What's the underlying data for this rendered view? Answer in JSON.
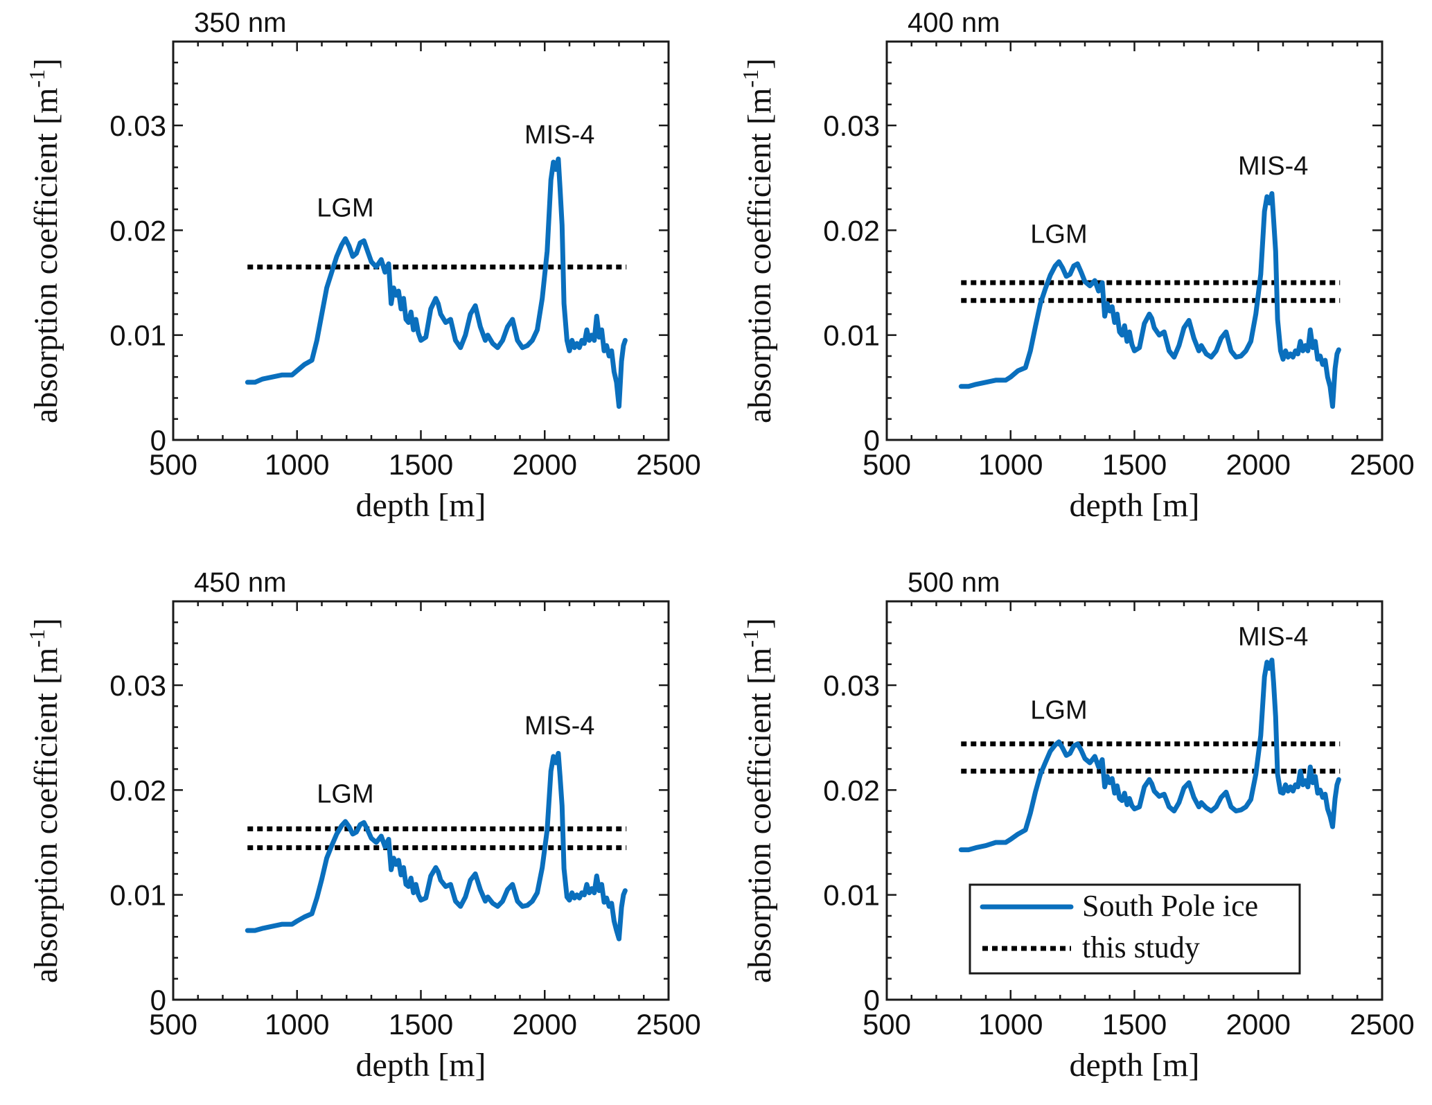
{
  "chart_data": [
    {
      "type": "line",
      "title": "350 nm",
      "xlabel": "depth [m]",
      "ylabel": "absorption coefficient [m",
      "ylabel_sup": "-1",
      "ylabel_close": "]",
      "xlim": [
        500,
        2500
      ],
      "ylim": [
        0,
        0.038
      ],
      "xticks": [
        "500",
        "1000",
        "1500",
        "2000",
        "2500"
      ],
      "xtick_values": [
        500,
        1000,
        1500,
        2000,
        2500
      ],
      "yticks": [
        "0",
        "0.01",
        "0.02",
        "0.03"
      ],
      "ytick_values": [
        0,
        0.01,
        0.02,
        0.03
      ],
      "series": [
        {
          "name": "South Pole ice",
          "x": [
            800,
            830,
            860,
            900,
            940,
            980,
            1000,
            1030,
            1060,
            1080,
            1100,
            1120,
            1140,
            1160,
            1180,
            1195,
            1210,
            1225,
            1240,
            1255,
            1270,
            1285,
            1300,
            1320,
            1340,
            1355,
            1370,
            1380,
            1390,
            1400,
            1410,
            1420,
            1430,
            1440,
            1450,
            1460,
            1470,
            1480,
            1490,
            1500,
            1520,
            1540,
            1560,
            1570,
            1580,
            1600,
            1620,
            1640,
            1660,
            1680,
            1700,
            1720,
            1740,
            1760,
            1770,
            1790,
            1810,
            1830,
            1850,
            1870,
            1880,
            1890,
            1910,
            1930,
            1950,
            1970,
            1990,
            2010,
            2025,
            2035,
            2045,
            2055,
            2062,
            2070,
            2078,
            2090,
            2100,
            2110,
            2120,
            2130,
            2140,
            2150,
            2160,
            2170,
            2180,
            2190,
            2200,
            2210,
            2220,
            2230,
            2240,
            2250,
            2260,
            2270,
            2280,
            2290,
            2300,
            2310,
            2318,
            2325
          ],
          "y": [
            0.0055,
            0.0055,
            0.0058,
            0.006,
            0.0062,
            0.0062,
            0.0066,
            0.0072,
            0.0076,
            0.0095,
            0.012,
            0.0145,
            0.016,
            0.0175,
            0.0186,
            0.0192,
            0.0185,
            0.0175,
            0.0178,
            0.0188,
            0.019,
            0.018,
            0.017,
            0.0165,
            0.0172,
            0.016,
            0.0168,
            0.013,
            0.0145,
            0.0138,
            0.0142,
            0.0125,
            0.0135,
            0.0115,
            0.0112,
            0.0122,
            0.0105,
            0.0115,
            0.0102,
            0.0095,
            0.0098,
            0.0125,
            0.0135,
            0.013,
            0.012,
            0.0112,
            0.0115,
            0.0095,
            0.0088,
            0.01,
            0.012,
            0.0128,
            0.0108,
            0.0095,
            0.01,
            0.0092,
            0.0088,
            0.0095,
            0.0108,
            0.0115,
            0.0105,
            0.0095,
            0.0088,
            0.009,
            0.0095,
            0.0105,
            0.0135,
            0.018,
            0.0248,
            0.0265,
            0.0258,
            0.0268,
            0.024,
            0.0205,
            0.013,
            0.0095,
            0.0085,
            0.0095,
            0.0088,
            0.0092,
            0.0088,
            0.0095,
            0.0092,
            0.0105,
            0.0095,
            0.01,
            0.0095,
            0.0118,
            0.0098,
            0.0105,
            0.0085,
            0.009,
            0.008,
            0.0085,
            0.0065,
            0.0055,
            0.0032,
            0.0075,
            0.009,
            0.0095
          ]
        }
      ],
      "reference_levels": [
        0.0165
      ],
      "annotations": [
        {
          "text": "LGM",
          "x": 1195,
          "y": 0.0213
        },
        {
          "text": "MIS-4",
          "x": 2060,
          "y": 0.0283
        }
      ]
    },
    {
      "type": "line",
      "title": "400 nm",
      "xlabel": "depth [m]",
      "ylabel": "absorption coefficient [m",
      "ylabel_sup": "-1",
      "ylabel_close": "]",
      "xlim": [
        500,
        2500
      ],
      "ylim": [
        0,
        0.038
      ],
      "xticks": [
        "500",
        "1000",
        "1500",
        "2000",
        "2500"
      ],
      "xtick_values": [
        500,
        1000,
        1500,
        2000,
        2500
      ],
      "yticks": [
        "0",
        "0.01",
        "0.02",
        "0.03"
      ],
      "ytick_values": [
        0,
        0.01,
        0.02,
        0.03
      ],
      "series": [
        {
          "name": "South Pole ice",
          "x": [
            800,
            830,
            860,
            900,
            940,
            980,
            1000,
            1030,
            1060,
            1080,
            1100,
            1120,
            1140,
            1160,
            1180,
            1195,
            1210,
            1225,
            1240,
            1255,
            1270,
            1285,
            1300,
            1320,
            1340,
            1355,
            1370,
            1380,
            1390,
            1400,
            1410,
            1420,
            1430,
            1440,
            1450,
            1460,
            1470,
            1480,
            1490,
            1500,
            1520,
            1540,
            1560,
            1570,
            1580,
            1600,
            1620,
            1640,
            1660,
            1680,
            1700,
            1720,
            1740,
            1760,
            1770,
            1790,
            1810,
            1830,
            1850,
            1870,
            1880,
            1890,
            1910,
            1930,
            1950,
            1970,
            1990,
            2010,
            2025,
            2035,
            2045,
            2055,
            2062,
            2070,
            2078,
            2090,
            2100,
            2110,
            2120,
            2130,
            2140,
            2150,
            2160,
            2170,
            2180,
            2190,
            2200,
            2210,
            2220,
            2230,
            2240,
            2250,
            2260,
            2270,
            2280,
            2290,
            2300,
            2310,
            2318,
            2325
          ],
          "y": [
            0.0051,
            0.0051,
            0.0053,
            0.0055,
            0.0057,
            0.0057,
            0.006,
            0.0066,
            0.0069,
            0.0085,
            0.0108,
            0.013,
            0.0144,
            0.0157,
            0.0166,
            0.017,
            0.0164,
            0.0156,
            0.0158,
            0.0166,
            0.0168,
            0.016,
            0.0151,
            0.0147,
            0.0152,
            0.0142,
            0.015,
            0.0118,
            0.013,
            0.0123,
            0.0127,
            0.0112,
            0.012,
            0.0103,
            0.01,
            0.0109,
            0.0094,
            0.0103,
            0.0091,
            0.0085,
            0.0088,
            0.0111,
            0.012,
            0.0116,
            0.0107,
            0.01,
            0.0103,
            0.0085,
            0.0079,
            0.009,
            0.0107,
            0.0114,
            0.0097,
            0.0085,
            0.009,
            0.0082,
            0.0079,
            0.0085,
            0.0097,
            0.0103,
            0.0094,
            0.0085,
            0.0079,
            0.008,
            0.0085,
            0.0094,
            0.012,
            0.0158,
            0.0218,
            0.0232,
            0.0226,
            0.0235,
            0.021,
            0.018,
            0.0115,
            0.0085,
            0.0077,
            0.0085,
            0.0079,
            0.0082,
            0.0079,
            0.0085,
            0.0082,
            0.0094,
            0.0085,
            0.009,
            0.0085,
            0.0105,
            0.0088,
            0.0094,
            0.0077,
            0.008,
            0.0072,
            0.0076,
            0.006,
            0.0051,
            0.0032,
            0.0068,
            0.0082,
            0.0086
          ]
        }
      ],
      "reference_levels": [
        0.015,
        0.0133
      ],
      "annotations": [
        {
          "text": "LGM",
          "x": 1195,
          "y": 0.0188
        },
        {
          "text": "MIS-4",
          "x": 2060,
          "y": 0.0253
        }
      ]
    },
    {
      "type": "line",
      "title": "450 nm",
      "xlabel": "depth [m]",
      "ylabel": "absorption coefficient [m",
      "ylabel_sup": "-1",
      "ylabel_close": "]",
      "xlim": [
        500,
        2500
      ],
      "ylim": [
        0,
        0.038
      ],
      "xticks": [
        "500",
        "1000",
        "1500",
        "2000",
        "2500"
      ],
      "xtick_values": [
        500,
        1000,
        1500,
        2000,
        2500
      ],
      "yticks": [
        "0",
        "0.01",
        "0.02",
        "0.03"
      ],
      "ytick_values": [
        0,
        0.01,
        0.02,
        0.03
      ],
      "series": [
        {
          "name": "South Pole ice",
          "x": [
            800,
            830,
            860,
            900,
            940,
            980,
            1000,
            1030,
            1060,
            1080,
            1100,
            1120,
            1140,
            1160,
            1180,
            1195,
            1210,
            1225,
            1240,
            1255,
            1270,
            1285,
            1300,
            1320,
            1340,
            1355,
            1370,
            1380,
            1390,
            1400,
            1410,
            1420,
            1430,
            1440,
            1450,
            1460,
            1470,
            1480,
            1490,
            1500,
            1520,
            1540,
            1560,
            1570,
            1580,
            1600,
            1620,
            1640,
            1660,
            1680,
            1700,
            1720,
            1740,
            1760,
            1770,
            1790,
            1810,
            1830,
            1850,
            1870,
            1880,
            1890,
            1910,
            1930,
            1950,
            1970,
            1990,
            2010,
            2025,
            2035,
            2045,
            2055,
            2062,
            2070,
            2078,
            2090,
            2100,
            2110,
            2120,
            2130,
            2140,
            2150,
            2160,
            2170,
            2180,
            2190,
            2200,
            2210,
            2220,
            2230,
            2240,
            2250,
            2260,
            2270,
            2280,
            2290,
            2300,
            2310,
            2318,
            2325
          ],
          "y": [
            0.0066,
            0.0066,
            0.0068,
            0.007,
            0.0072,
            0.0072,
            0.0075,
            0.0079,
            0.0082,
            0.0097,
            0.0115,
            0.0135,
            0.0147,
            0.0158,
            0.0166,
            0.017,
            0.0165,
            0.0158,
            0.016,
            0.0167,
            0.0169,
            0.0162,
            0.0154,
            0.015,
            0.0156,
            0.0146,
            0.0153,
            0.0124,
            0.0135,
            0.0129,
            0.0133,
            0.0119,
            0.0126,
            0.011,
            0.0108,
            0.0116,
            0.0102,
            0.011,
            0.01,
            0.0095,
            0.0097,
            0.0118,
            0.0126,
            0.0122,
            0.0114,
            0.0108,
            0.011,
            0.0094,
            0.0089,
            0.0098,
            0.0114,
            0.012,
            0.0105,
            0.0094,
            0.0098,
            0.0092,
            0.0089,
            0.0094,
            0.0105,
            0.011,
            0.0102,
            0.0094,
            0.0089,
            0.009,
            0.0094,
            0.0102,
            0.0126,
            0.0162,
            0.0218,
            0.0232,
            0.0226,
            0.0235,
            0.0213,
            0.0185,
            0.0125,
            0.0098,
            0.0095,
            0.0102,
            0.0097,
            0.01,
            0.0097,
            0.0102,
            0.01,
            0.011,
            0.0102,
            0.0106,
            0.0102,
            0.0118,
            0.0104,
            0.011,
            0.0093,
            0.0097,
            0.0089,
            0.0092,
            0.0075,
            0.0066,
            0.0058,
            0.0088,
            0.01,
            0.0104
          ]
        }
      ],
      "reference_levels": [
        0.0163,
        0.0145
      ],
      "annotations": [
        {
          "text": "LGM",
          "x": 1195,
          "y": 0.0188
        },
        {
          "text": "MIS-4",
          "x": 2060,
          "y": 0.0253
        }
      ]
    },
    {
      "type": "line",
      "title": "500 nm",
      "xlabel": "depth [m]",
      "ylabel": "absorption coefficient [m",
      "ylabel_sup": "-1",
      "ylabel_close": "]",
      "xlim": [
        500,
        2500
      ],
      "ylim": [
        0,
        0.038
      ],
      "xticks": [
        "500",
        "1000",
        "1500",
        "2000",
        "2500"
      ],
      "xtick_values": [
        500,
        1000,
        1500,
        2000,
        2500
      ],
      "yticks": [
        "0",
        "0.01",
        "0.02",
        "0.03"
      ],
      "ytick_values": [
        0,
        0.01,
        0.02,
        0.03
      ],
      "legend": {
        "placement": "bottom-right",
        "entries": [
          "South Pole ice",
          "this study"
        ]
      },
      "series": [
        {
          "name": "South Pole ice",
          "x": [
            800,
            830,
            860,
            900,
            940,
            980,
            1000,
            1030,
            1060,
            1080,
            1100,
            1120,
            1140,
            1160,
            1180,
            1195,
            1210,
            1225,
            1240,
            1255,
            1270,
            1285,
            1300,
            1320,
            1340,
            1355,
            1370,
            1380,
            1390,
            1400,
            1410,
            1420,
            1430,
            1440,
            1450,
            1460,
            1470,
            1480,
            1490,
            1500,
            1520,
            1540,
            1560,
            1570,
            1580,
            1600,
            1620,
            1640,
            1660,
            1680,
            1700,
            1720,
            1740,
            1760,
            1770,
            1790,
            1810,
            1830,
            1850,
            1870,
            1880,
            1890,
            1910,
            1930,
            1950,
            1970,
            1990,
            2010,
            2025,
            2035,
            2045,
            2055,
            2062,
            2070,
            2078,
            2090,
            2100,
            2110,
            2120,
            2130,
            2140,
            2150,
            2160,
            2170,
            2180,
            2190,
            2200,
            2210,
            2220,
            2230,
            2240,
            2250,
            2260,
            2270,
            2280,
            2290,
            2300,
            2310,
            2318,
            2325
          ],
          "y": [
            0.0143,
            0.0143,
            0.0145,
            0.0147,
            0.015,
            0.015,
            0.0153,
            0.0158,
            0.0162,
            0.0178,
            0.0198,
            0.0215,
            0.0226,
            0.0237,
            0.0243,
            0.0246,
            0.024,
            0.0233,
            0.0235,
            0.0242,
            0.0244,
            0.0238,
            0.023,
            0.0226,
            0.0232,
            0.0222,
            0.0229,
            0.0203,
            0.0213,
            0.0207,
            0.0211,
            0.0197,
            0.0204,
            0.0192,
            0.019,
            0.0197,
            0.0186,
            0.0192,
            0.0185,
            0.0182,
            0.0184,
            0.0203,
            0.021,
            0.0206,
            0.0199,
            0.0194,
            0.0196,
            0.0184,
            0.018,
            0.0188,
            0.0202,
            0.0207,
            0.0193,
            0.0184,
            0.0188,
            0.0183,
            0.018,
            0.0184,
            0.0193,
            0.0198,
            0.0191,
            0.0184,
            0.018,
            0.0181,
            0.0184,
            0.0191,
            0.0215,
            0.0252,
            0.0308,
            0.0322,
            0.0316,
            0.0324,
            0.0302,
            0.027,
            0.0215,
            0.0198,
            0.0197,
            0.0205,
            0.0199,
            0.0203,
            0.0199,
            0.0205,
            0.0203,
            0.0218,
            0.0205,
            0.0209,
            0.0203,
            0.0222,
            0.0207,
            0.0213,
            0.0197,
            0.02,
            0.0193,
            0.0196,
            0.0182,
            0.0175,
            0.0165,
            0.0192,
            0.0205,
            0.021
          ]
        }
      ],
      "reference_levels": [
        0.0244,
        0.0218
      ],
      "annotations": [
        {
          "text": "LGM",
          "x": 1195,
          "y": 0.0268
        },
        {
          "text": "MIS-4",
          "x": 2060,
          "y": 0.0338
        }
      ]
    }
  ],
  "legend": {
    "south_pole_label": "South Pole ice",
    "this_study_label": "this study"
  },
  "colors": {
    "series": "#0a6fbd",
    "reference": "#000000"
  }
}
